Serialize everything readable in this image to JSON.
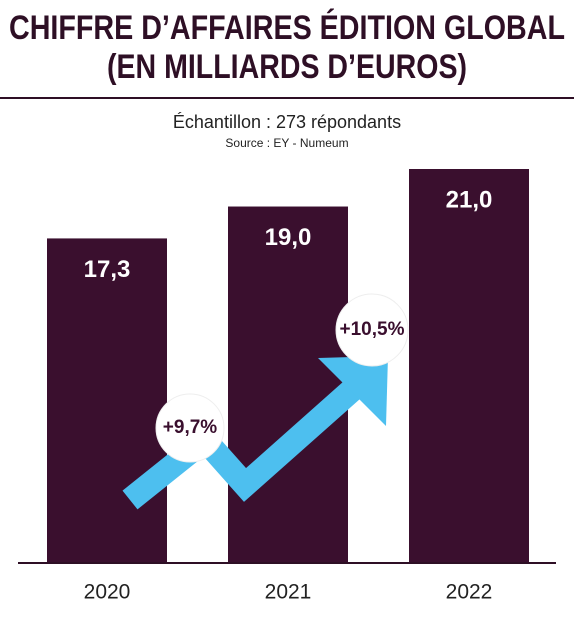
{
  "chart_data": {
    "type": "bar",
    "title": [
      "CHIFFRE D’AFFAIRES ÉDITION GLOBAL",
      "(EN MILLIARDS D’EUROS)"
    ],
    "subtitle": "Échantillon : 273 répondants",
    "source": "Source : EY - Numeum",
    "categories": [
      "2020",
      "2021",
      "2022"
    ],
    "values": [
      17.3,
      19.0,
      21.0
    ],
    "value_labels": [
      "17,3",
      "19,0",
      "21,0"
    ],
    "color": "#3a0f2e",
    "annotations": [
      "+9,7%",
      "+10,5%"
    ]
  }
}
